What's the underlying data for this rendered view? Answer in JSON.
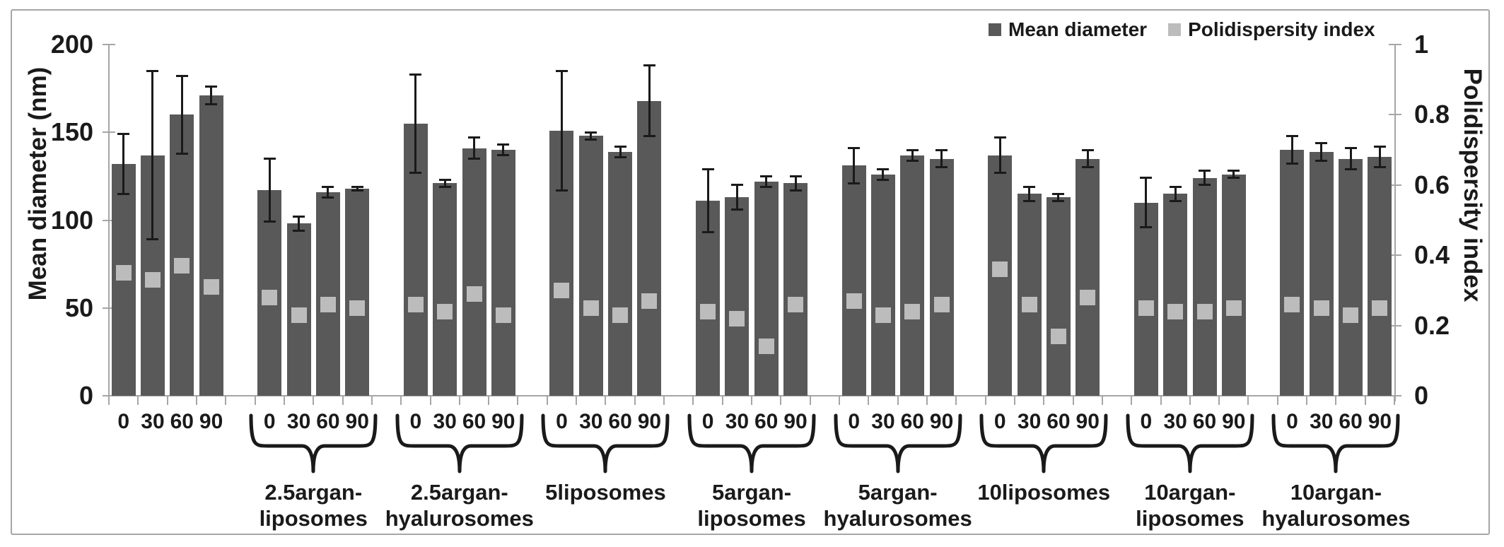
{
  "chart_data": {
    "type": "bar",
    "title": "",
    "grid": false,
    "legend_position": "top-right",
    "left_axis": {
      "title": "Mean diameter (nm)",
      "ticks": [
        200,
        150,
        100,
        50,
        0
      ],
      "range": [
        0,
        200
      ]
    },
    "right_axis": {
      "title": "Polidispersity index",
      "ticks": [
        1,
        0.8,
        0.6,
        0.4,
        0.2,
        0
      ],
      "range": [
        0,
        1
      ]
    },
    "x_timepoint_labels": [
      "0",
      "30",
      "60",
      "90"
    ],
    "legend": [
      {
        "label": "Mean diameter",
        "series": "diameter"
      },
      {
        "label": "Polidispersity index",
        "series": "pdi"
      }
    ],
    "colors": {
      "bar": "#595959",
      "marker": "#bcbcbc",
      "error": "#1a1a1a",
      "axis": "#a6a6a6",
      "text": "#1a1a1a"
    },
    "groups": [
      {
        "label": "",
        "diameter": [
          132,
          137,
          160,
          171
        ],
        "error": [
          17,
          48,
          22,
          5
        ],
        "pdi": [
          0.35,
          0.33,
          0.37,
          0.31
        ]
      },
      {
        "label": "2.5argan-\nliposomes",
        "diameter": [
          117,
          98,
          116,
          118
        ],
        "error": [
          18,
          4,
          3,
          1
        ],
        "pdi": [
          0.28,
          0.23,
          0.26,
          0.25
        ]
      },
      {
        "label": "2.5argan-\nhyalurosomes",
        "diameter": [
          155,
          121,
          141,
          140
        ],
        "error": [
          28,
          2,
          6,
          3
        ],
        "pdi": [
          0.26,
          0.24,
          0.29,
          0.23
        ]
      },
      {
        "label": "5liposomes",
        "diameter": [
          151,
          148,
          139,
          168
        ],
        "error": [
          34,
          2,
          3,
          20
        ],
        "pdi": [
          0.3,
          0.25,
          0.23,
          0.27
        ]
      },
      {
        "label": "5argan-\nliposomes",
        "diameter": [
          111,
          113,
          122,
          121
        ],
        "error": [
          18,
          7,
          3,
          4
        ],
        "pdi": [
          0.24,
          0.22,
          0.14,
          0.26
        ]
      },
      {
        "label": "5argan-\nhyalurosomes",
        "diameter": [
          131,
          126,
          137,
          135
        ],
        "error": [
          10,
          3,
          3,
          5
        ],
        "pdi": [
          0.27,
          0.23,
          0.24,
          0.26
        ]
      },
      {
        "label": "10liposomes",
        "diameter": [
          137,
          115,
          113,
          135
        ],
        "error": [
          10,
          4,
          2,
          5
        ],
        "pdi": [
          0.36,
          0.26,
          0.17,
          0.28
        ]
      },
      {
        "label": "10argan-\nliposomes",
        "diameter": [
          110,
          115,
          124,
          126
        ],
        "error": [
          14,
          4,
          4,
          2
        ],
        "pdi": [
          0.25,
          0.24,
          0.24,
          0.25
        ]
      },
      {
        "label": "10argan-\nhyalurosomes",
        "diameter": [
          140,
          139,
          135,
          136
        ],
        "error": [
          8,
          5,
          6,
          6
        ],
        "pdi": [
          0.26,
          0.25,
          0.23,
          0.25
        ]
      }
    ]
  }
}
